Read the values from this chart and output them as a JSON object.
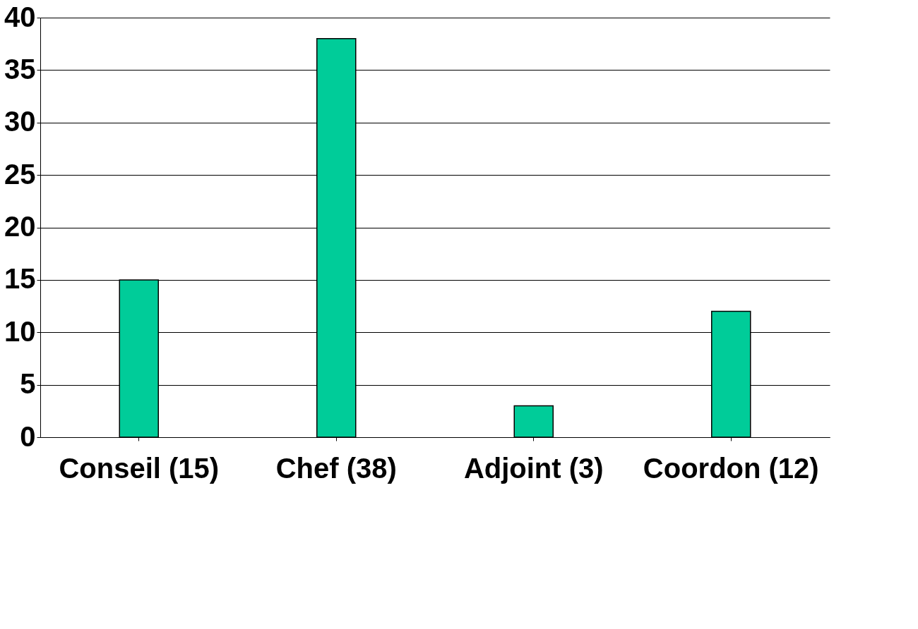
{
  "chart_data": {
    "type": "bar",
    "categories": [
      "Conseil (15)",
      "Chef (38)",
      "Adjoint (3)",
      "Coordon (12)"
    ],
    "values": [
      15,
      38,
      3,
      12
    ],
    "color": "#00cc99",
    "ylim": [
      0,
      40
    ],
    "yticks": [
      0,
      5,
      10,
      15,
      20,
      25,
      30,
      35,
      40
    ],
    "grid": "y"
  }
}
